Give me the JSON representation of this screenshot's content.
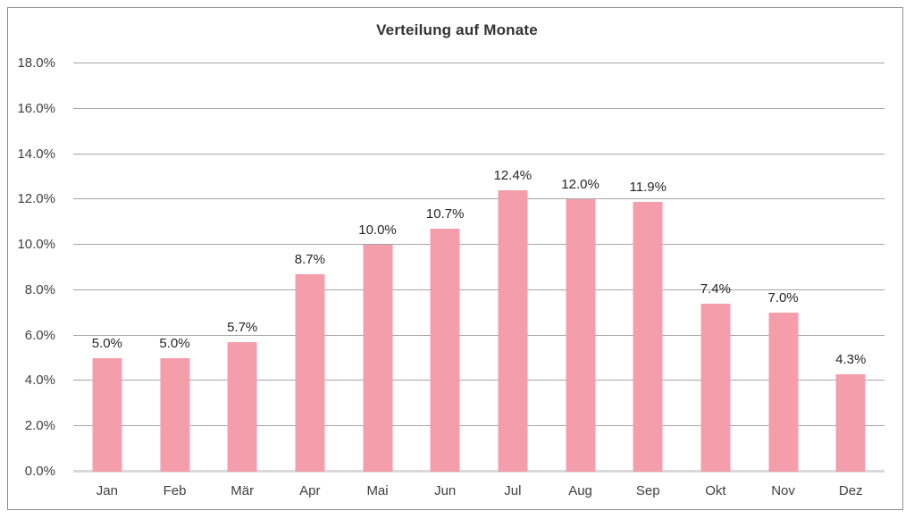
{
  "chart_data": {
    "type": "bar",
    "title": "Verteilung auf Monate",
    "categories": [
      "Jan",
      "Feb",
      "Mär",
      "Apr",
      "Mai",
      "Jun",
      "Jul",
      "Aug",
      "Sep",
      "Okt",
      "Nov",
      "Dez"
    ],
    "values": [
      5.0,
      5.0,
      5.7,
      8.7,
      10.0,
      10.7,
      12.4,
      12.0,
      11.9,
      7.4,
      7.0,
      4.3
    ],
    "data_labels": [
      "5.0%",
      "5.0%",
      "5.7%",
      "8.7%",
      "10.0%",
      "10.7%",
      "12.4%",
      "12.0%",
      "11.9%",
      "7.4%",
      "7.0%",
      "4.3%"
    ],
    "xlabel": "",
    "ylabel": "",
    "ylim": [
      0,
      18
    ],
    "ytick_step": 2,
    "ytick_labels": [
      "0.0%",
      "2.0%",
      "4.0%",
      "6.0%",
      "8.0%",
      "10.0%",
      "12.0%",
      "14.0%",
      "16.0%",
      "18.0%"
    ],
    "grid": true,
    "legend_position": "none",
    "colors": {
      "bar_fill": "#F49EAC",
      "gridline": "#A6A6A6",
      "baseline": "#D9D9D9",
      "frame_border": "#8F8F8F",
      "axis_text": "#404040",
      "data_label_text": "#262626",
      "title_text": "#333333",
      "background": "#FFFFFF"
    }
  }
}
